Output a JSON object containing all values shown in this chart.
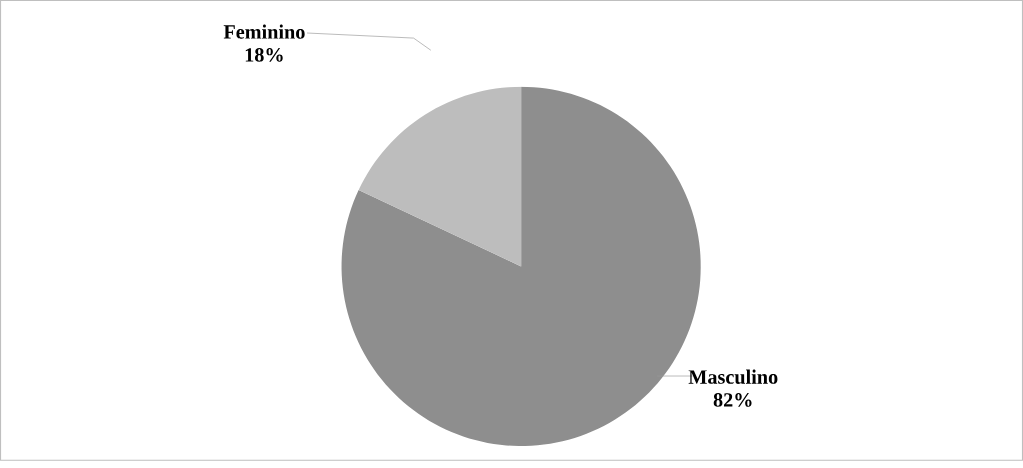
{
  "chart_data": {
    "type": "pie",
    "categories": [
      "Masculino",
      "Feminino"
    ],
    "values": [
      82,
      18
    ],
    "colors": [
      "#8e8e8e",
      "#bdbdbd"
    ],
    "value_labels": [
      "82%",
      "18%"
    ]
  }
}
